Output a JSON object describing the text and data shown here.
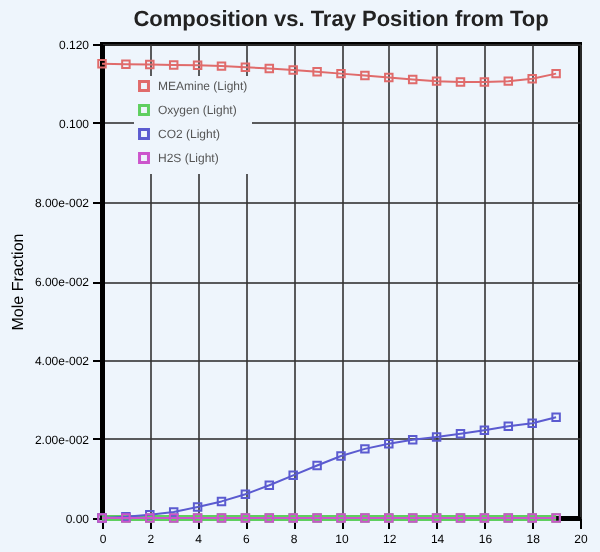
{
  "chart_data": {
    "type": "line",
    "title": "Composition vs. Tray Position from Top",
    "ylabel": "Mole Fraction",
    "x": [
      0,
      1,
      2,
      3,
      4,
      5,
      6,
      7,
      8,
      9,
      10,
      11,
      12,
      13,
      14,
      15,
      16,
      17,
      18,
      19
    ],
    "series": [
      {
        "name": "MEAmine (Light)",
        "color": "#e06b6b",
        "values": [
          0.115,
          0.1149,
          0.1148,
          0.1147,
          0.1146,
          0.1144,
          0.1141,
          0.1138,
          0.1134,
          0.113,
          0.1125,
          0.112,
          0.1115,
          0.111,
          0.1106,
          0.1104,
          0.1104,
          0.1106,
          0.1112,
          0.1125
        ]
      },
      {
        "name": "Oxygen (Light)",
        "color": "#5fcf5f",
        "values": [
          0,
          0,
          0,
          0,
          0,
          0,
          0,
          0,
          0,
          0,
          0,
          0,
          0,
          0,
          0,
          0,
          0,
          0,
          0,
          0
        ]
      },
      {
        "name": "CO2 (Light)",
        "color": "#5b5bd0",
        "values": [
          0,
          0.0003,
          0.0008,
          0.0015,
          0.0028,
          0.0042,
          0.006,
          0.0083,
          0.0108,
          0.0133,
          0.0157,
          0.0175,
          0.0188,
          0.0198,
          0.0205,
          0.0213,
          0.0222,
          0.0232,
          0.024,
          0.0255
        ]
      },
      {
        "name": "H2S (Light)",
        "color": "#cc55cc",
        "values": [
          0,
          0,
          0,
          0,
          0,
          0,
          0,
          0,
          0,
          0,
          0,
          0,
          0,
          0,
          0,
          0,
          0,
          0,
          0,
          0
        ]
      }
    ],
    "xlim": [
      0,
      20
    ],
    "xticks": [
      0,
      2,
      4,
      6,
      8,
      10,
      12,
      14,
      16,
      18,
      20
    ],
    "ylim": [
      0,
      0.12
    ],
    "yticks": [
      {
        "value": 0,
        "label": "0.00"
      },
      {
        "value": 0.02,
        "label": "2.00e-002"
      },
      {
        "value": 0.04,
        "label": "4.00e-002"
      },
      {
        "value": 0.06,
        "label": "6.00e-002"
      },
      {
        "value": 0.08,
        "label": "8.00e-002"
      },
      {
        "value": 0.1,
        "label": "0.100"
      },
      {
        "value": 0.12,
        "label": "0.120"
      }
    ],
    "grid": true,
    "legend": "top left",
    "marker": "square",
    "line_style": "solid"
  }
}
